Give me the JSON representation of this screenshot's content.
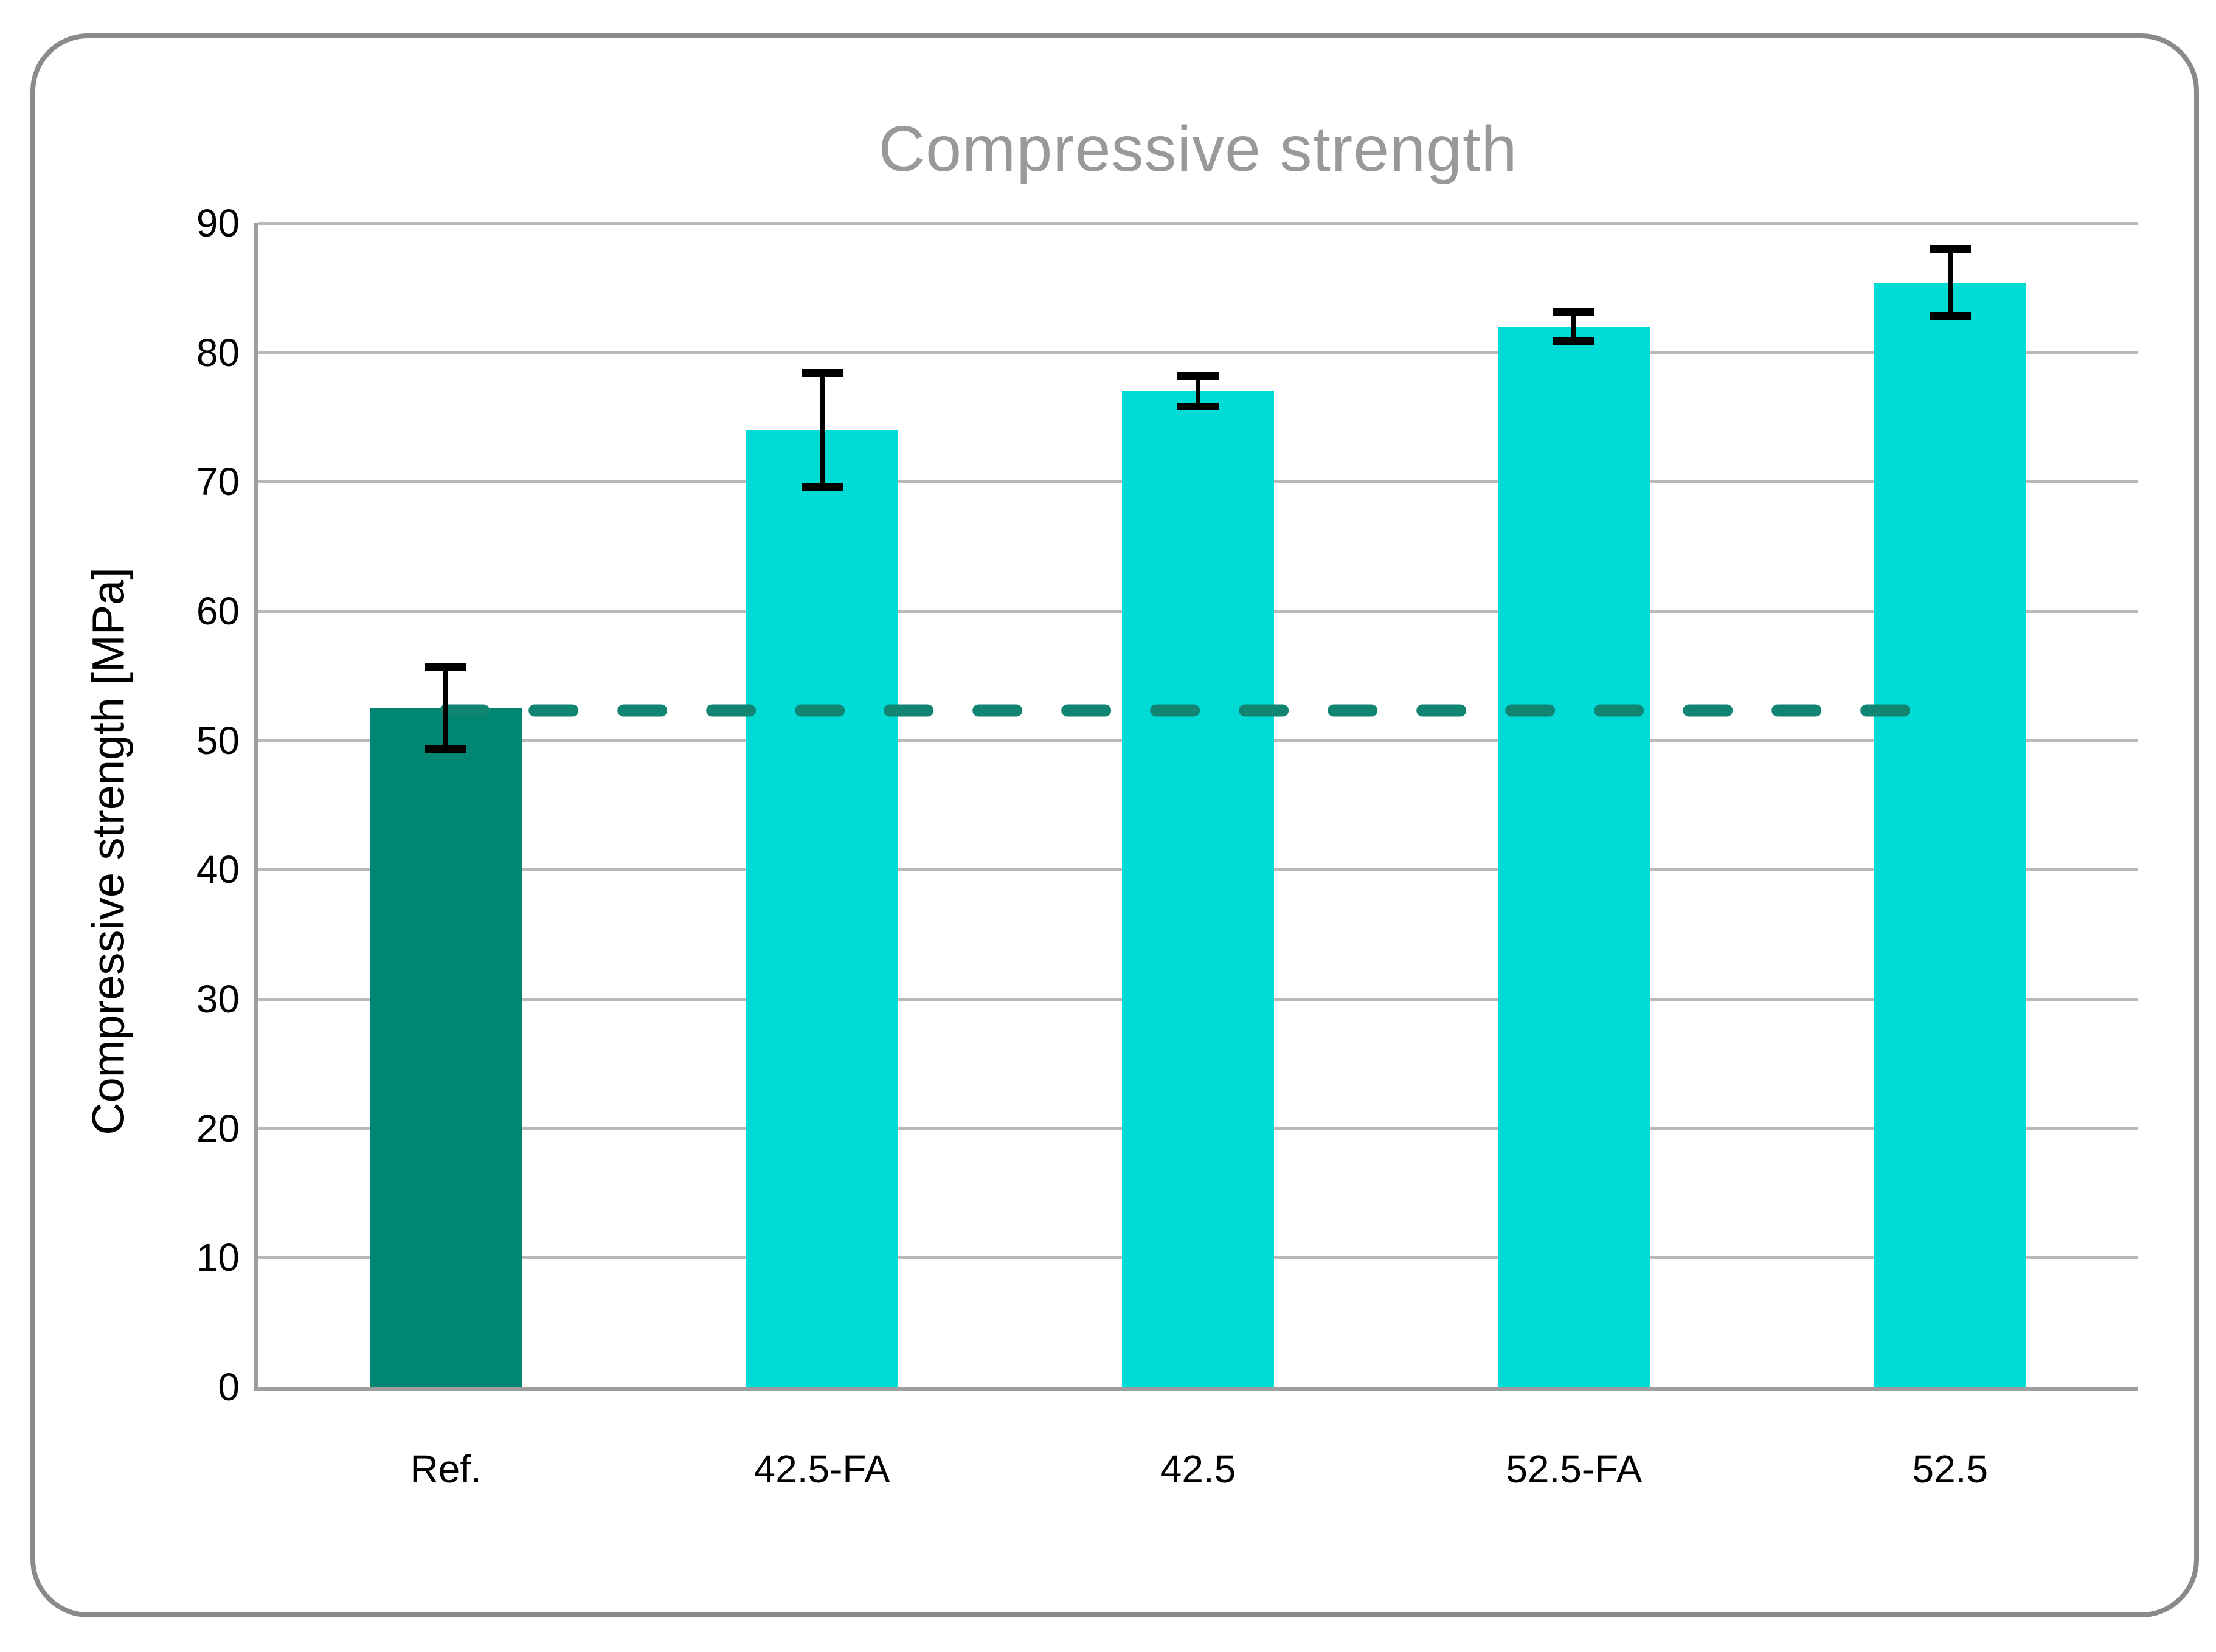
{
  "chart_data": {
    "type": "bar",
    "title": "Compressive strength",
    "ylabel": "Compressive strength [MPa]",
    "xlabel": "",
    "ylim": [
      0,
      90
    ],
    "ytick_step": 10,
    "yticks": [
      "0",
      "10",
      "20",
      "30",
      "40",
      "50",
      "60",
      "70",
      "80",
      "90"
    ],
    "grid": true,
    "legend": false,
    "categories": [
      "Ref.",
      "42.5-FA",
      "42.5",
      "52.5-FA",
      "52.5"
    ],
    "values": [
      52.5,
      74,
      77,
      82,
      85.4
    ],
    "error_bars": [
      3.5,
      4.7,
      1.5,
      1.4,
      2.9
    ],
    "bar_colors": [
      "#008673",
      "#00DBD6",
      "#00DBD6",
      "#00DBD6",
      "#00DBD6"
    ],
    "accent_colors": {
      "reference_teal": "#008673",
      "series_cyan": "#00DBD6"
    },
    "reference_line": {
      "value": 52.5,
      "color": "#128472",
      "style": "dashed",
      "from_category": "Ref.",
      "to_category": "52.5"
    }
  }
}
